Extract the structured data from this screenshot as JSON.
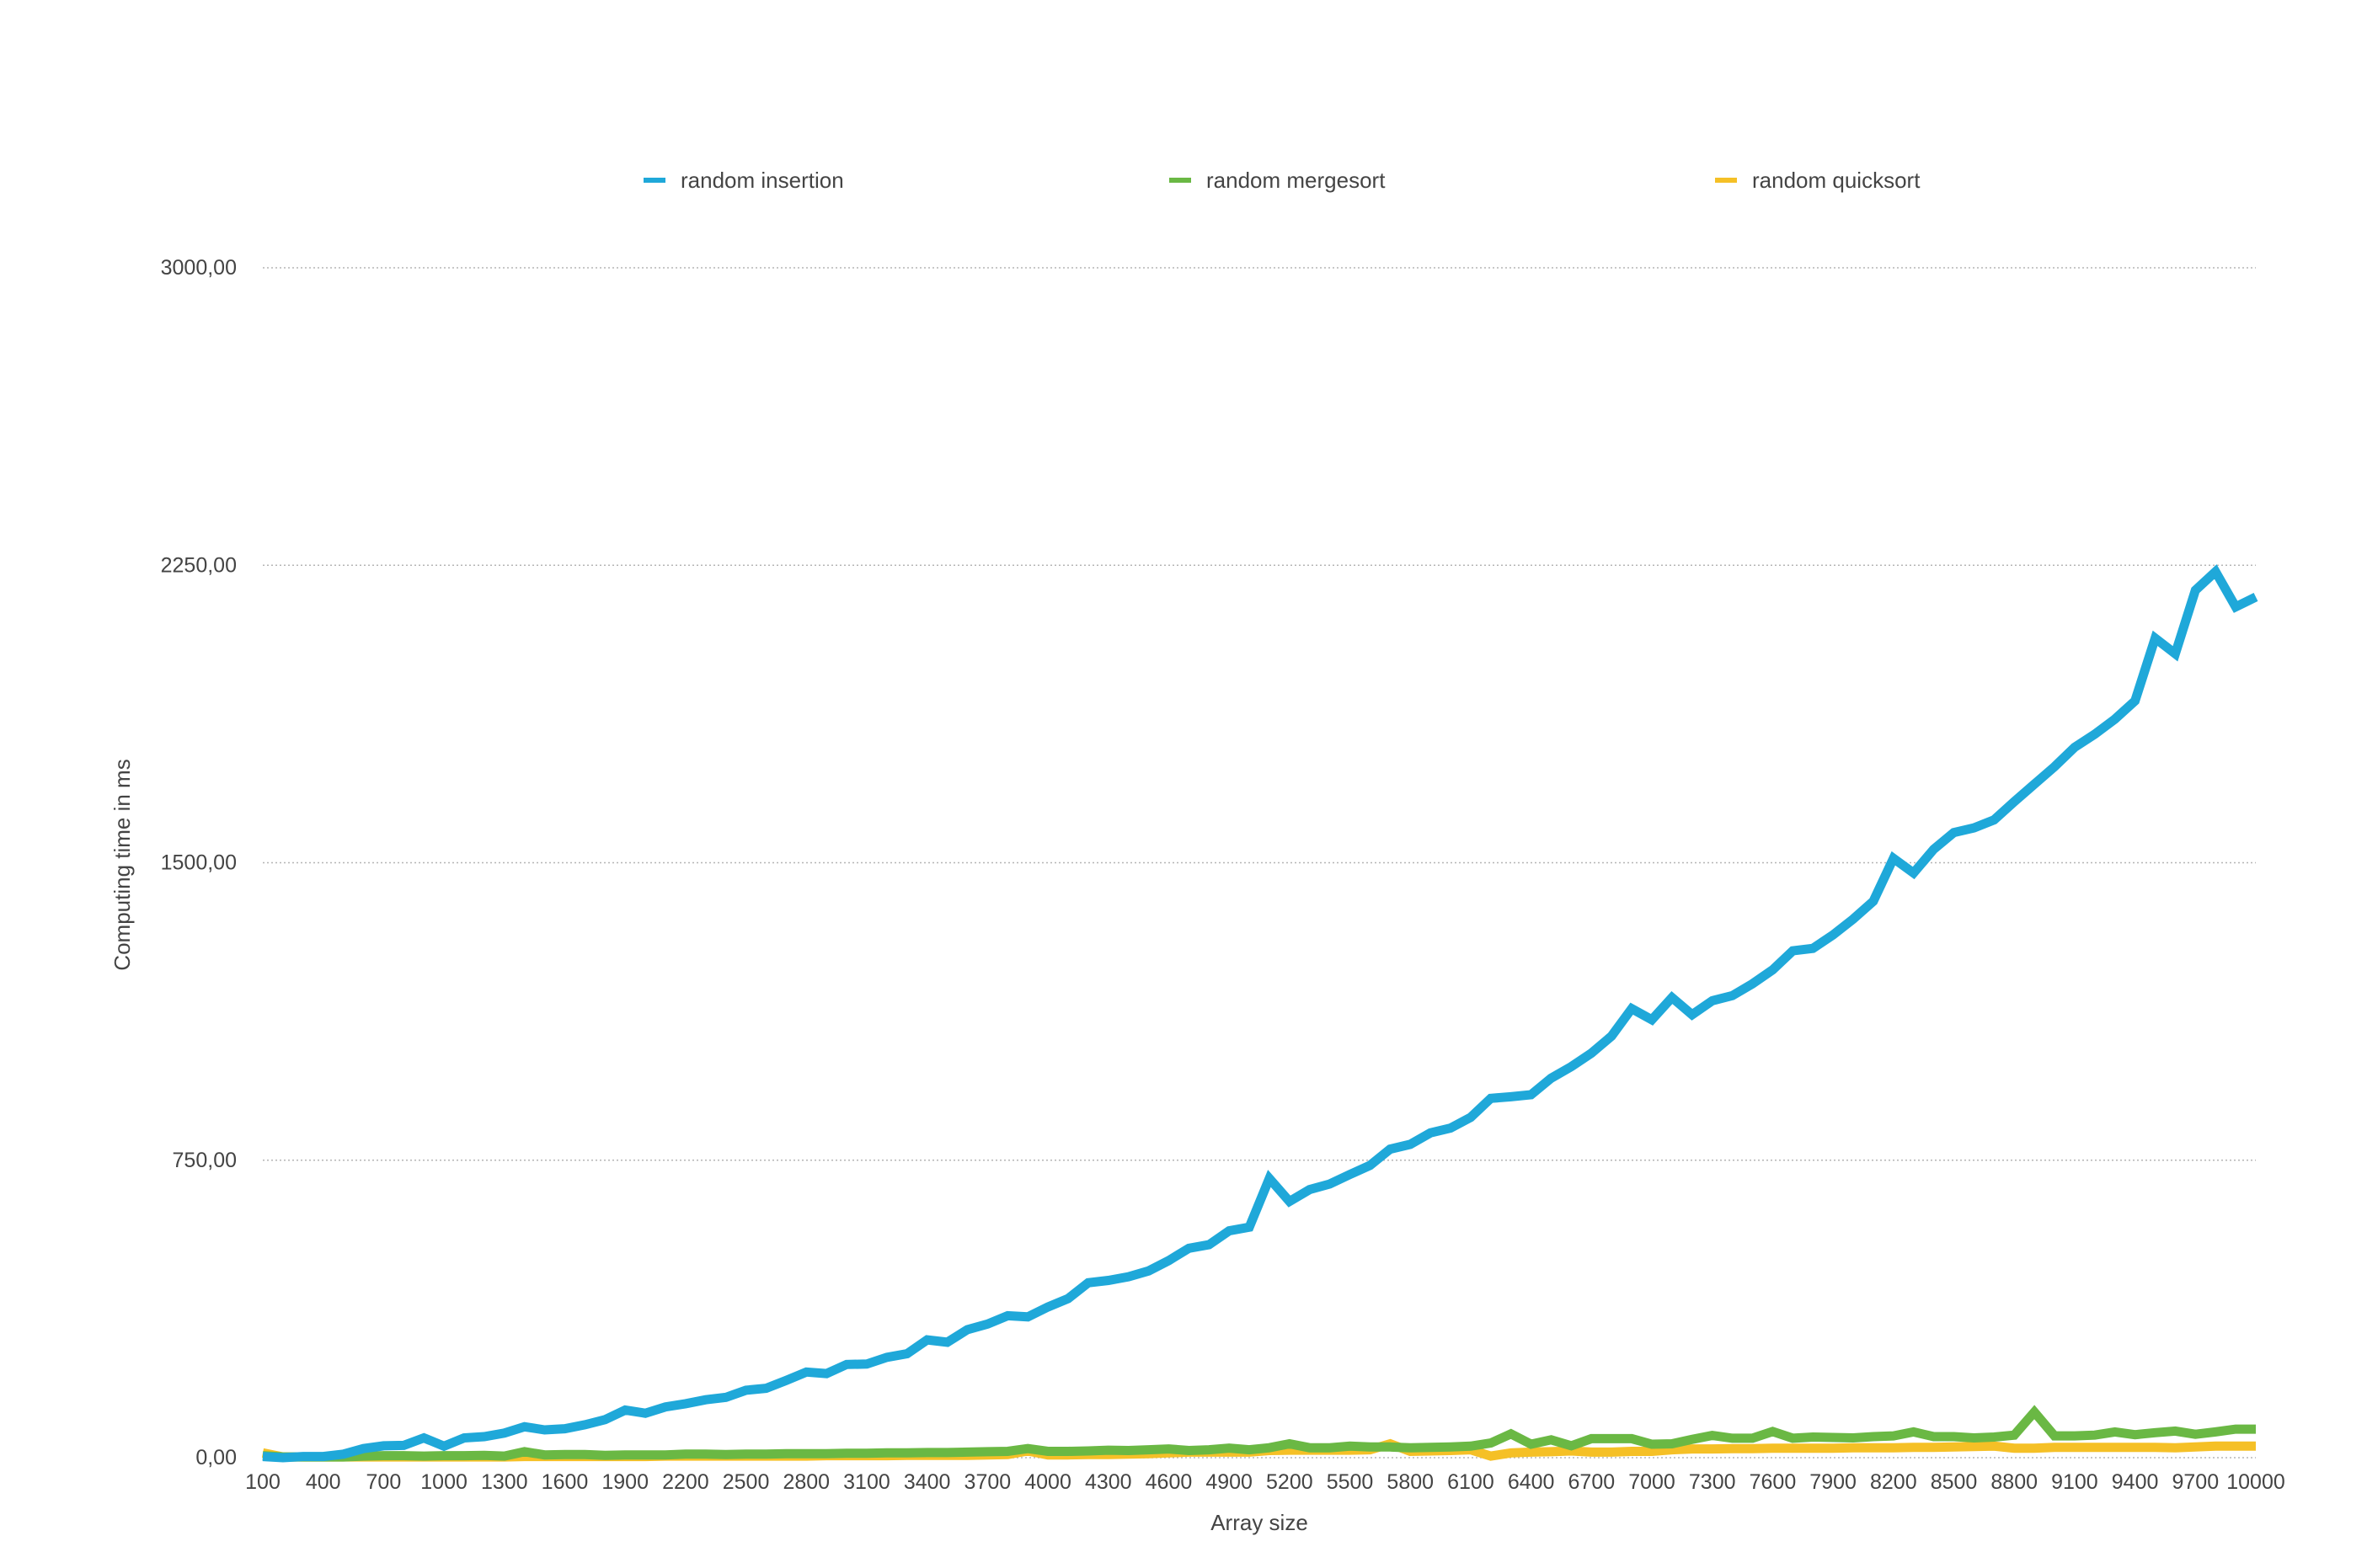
{
  "chart_data": {
    "type": "line",
    "title": "",
    "xlabel": "Array size",
    "ylabel": "Computing time in ms",
    "ylim": [
      0,
      3000
    ],
    "yticks": [
      "0,00",
      "750,00",
      "1500,00",
      "2250,00",
      "3000,00"
    ],
    "ytick_values": [
      0,
      750,
      1500,
      2250,
      3000
    ],
    "grid": "horizontal dotted",
    "legend_position": "top",
    "x": [
      100,
      200,
      300,
      400,
      500,
      600,
      700,
      800,
      900,
      1000,
      1100,
      1200,
      1300,
      1400,
      1500,
      1600,
      1700,
      1800,
      1900,
      2000,
      2100,
      2200,
      2300,
      2400,
      2500,
      2600,
      2700,
      2800,
      2900,
      3000,
      3100,
      3200,
      3300,
      3400,
      3500,
      3600,
      3700,
      3800,
      3900,
      4000,
      4100,
      4200,
      4300,
      4400,
      4500,
      4600,
      4700,
      4800,
      4900,
      5000,
      5100,
      5200,
      5300,
      5400,
      5500,
      5600,
      5700,
      5800,
      5900,
      6000,
      6100,
      6200,
      6300,
      6400,
      6500,
      6600,
      6700,
      6800,
      6900,
      7000,
      7100,
      7200,
      7300,
      7400,
      7500,
      7600,
      7700,
      7800,
      7900,
      8000,
      8100,
      8200,
      8300,
      8400,
      8500,
      8600,
      8700,
      8800,
      8900,
      9000,
      9100,
      9200,
      9300,
      9400,
      9500,
      9600,
      9700,
      9800,
      9900,
      10000
    ],
    "xtick_labels": [
      "100",
      "400",
      "700",
      "1000",
      "1300",
      "1600",
      "1900",
      "2200",
      "2500",
      "2800",
      "3100",
      "3400",
      "3700",
      "4000",
      "4300",
      "4600",
      "4900",
      "5200",
      "5500",
      "5800",
      "6100",
      "6400",
      "6700",
      "7000",
      "7300",
      "7600",
      "7900",
      "8200",
      "8500",
      "8800",
      "9100",
      "9400",
      "9700",
      "10000"
    ],
    "series": [
      {
        "name": "random insertion",
        "color": "#1fa8d9",
        "values": [
          3,
          0,
          3,
          3,
          9,
          23,
          30,
          31,
          50,
          29,
          50,
          53,
          62,
          78,
          70,
          73,
          83,
          96,
          120,
          112,
          128,
          136,
          146,
          152,
          170,
          175,
          195,
          216,
          212,
          235,
          236,
          253,
          262,
          297,
          291,
          323,
          337,
          358,
          355,
          380,
          401,
          441,
          447,
          456,
          471,
          497,
          528,
          537,
          572,
          581,
          704,
          646,
          676,
          690,
          714,
          737,
          778,
          790,
          819,
          831,
          858,
          906,
          910,
          915,
          957,
          986,
          1020,
          1063,
          1132,
          1104,
          1160,
          1117,
          1152,
          1165,
          1195,
          1230,
          1278,
          1284,
          1318,
          1358,
          1403,
          1511,
          1474,
          1534,
          1576,
          1588,
          1608,
          1654,
          1698,
          1742,
          1791,
          1824,
          1862,
          1908,
          2066,
          2027,
          2187,
          2234,
          2145,
          2170
        ]
      },
      {
        "name": "random mergesort",
        "color": "#6ab844",
        "values": [
          5,
          2,
          2,
          2,
          2,
          4,
          5,
          5,
          4,
          5,
          5,
          6,
          4,
          15,
          7,
          8,
          8,
          6,
          7,
          7,
          7,
          9,
          9,
          8,
          9,
          9,
          10,
          10,
          10,
          11,
          11,
          12,
          12,
          13,
          13,
          14,
          15,
          16,
          23,
          16,
          16,
          17,
          19,
          18,
          20,
          22,
          18,
          20,
          24,
          20,
          25,
          35,
          25,
          25,
          29,
          27,
          27,
          25,
          26,
          27,
          29,
          37,
          60,
          34,
          45,
          30,
          48,
          48,
          48,
          34,
          35,
          46,
          56,
          49,
          49,
          66,
          49,
          52,
          51,
          50,
          53,
          55,
          65,
          53,
          53,
          50,
          52,
          57,
          115,
          55,
          55,
          57,
          65,
          58,
          63,
          67,
          59,
          65,
          72,
          72
        ]
      },
      {
        "name": "random quicksort",
        "color": "#f5c026",
        "values": [
          12,
          2,
          2,
          2,
          2,
          2,
          2,
          2,
          2,
          2,
          2,
          2,
          2,
          3,
          3,
          3,
          3,
          3,
          3,
          3,
          4,
          4,
          4,
          4,
          4,
          4,
          4,
          4,
          5,
          5,
          5,
          5,
          6,
          6,
          6,
          6,
          7,
          8,
          17,
          7,
          7,
          8,
          8,
          9,
          10,
          12,
          14,
          14,
          14,
          14,
          18,
          19,
          19,
          19,
          19,
          20,
          35,
          16,
          17,
          18,
          20,
          4,
          12,
          14,
          15,
          17,
          14,
          14,
          16,
          16,
          20,
          22,
          22,
          23,
          23,
          24,
          24,
          24,
          24,
          25,
          25,
          25,
          26,
          26,
          27,
          28,
          29,
          24,
          24,
          26,
          26,
          26,
          26,
          26,
          26,
          25,
          27,
          29,
          29,
          29
        ]
      }
    ]
  }
}
